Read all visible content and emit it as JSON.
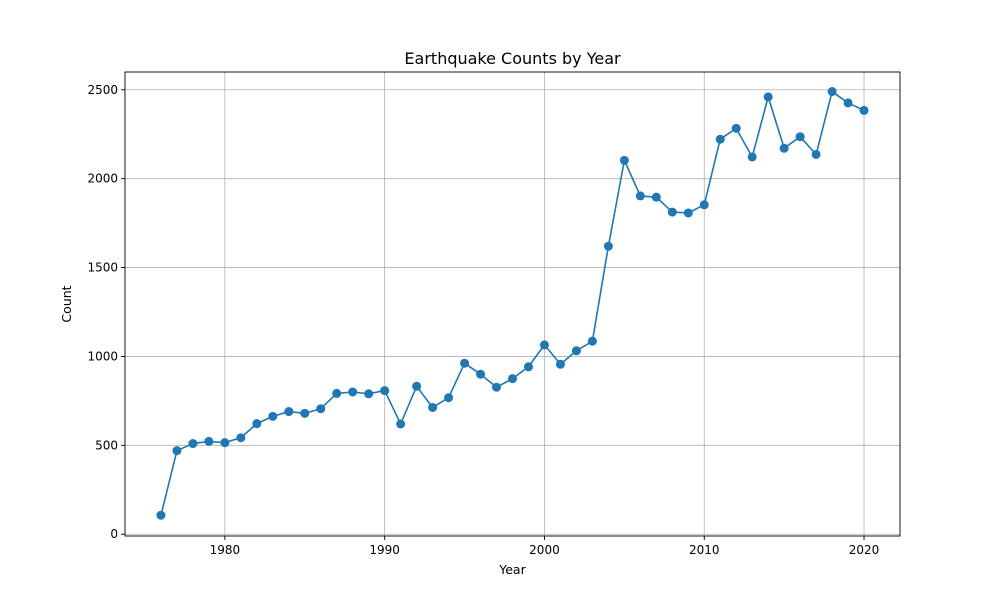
{
  "chart_data": {
    "type": "line",
    "title": "Earthquake Counts by Year",
    "xlabel": "Year",
    "ylabel": "Count",
    "xlim": [
      1973.75,
      2022.25
    ],
    "ylim": [
      -10,
      2600
    ],
    "xticks": [
      1980,
      1990,
      2000,
      2010,
      2020
    ],
    "yticks": [
      0,
      500,
      1000,
      1500,
      2000,
      2500
    ],
    "grid": true,
    "marker": "circle",
    "color": "#1f77b4",
    "x": [
      1976,
      1977,
      1978,
      1979,
      1980,
      1981,
      1982,
      1983,
      1984,
      1985,
      1986,
      1987,
      1988,
      1989,
      1990,
      1991,
      1992,
      1993,
      1994,
      1995,
      1996,
      1997,
      1998,
      1999,
      2000,
      2001,
      2002,
      2003,
      2004,
      2005,
      2006,
      2007,
      2008,
      2009,
      2010,
      2011,
      2012,
      2013,
      2014,
      2015,
      2016,
      2017,
      2018,
      2019,
      2020
    ],
    "series": [
      {
        "values": [
          107,
          470,
          510,
          522,
          515,
          543,
          622,
          663,
          690,
          680,
          706,
          792,
          800,
          790,
          808,
          620,
          832,
          713,
          768,
          962,
          900,
          827,
          875,
          942,
          1065,
          956,
          1032,
          1086,
          1620,
          2103,
          1903,
          1896,
          1812,
          1807,
          1853,
          2222,
          2283,
          2122,
          2460,
          2171,
          2236,
          2136,
          2490,
          2426,
          2384
        ]
      }
    ]
  }
}
